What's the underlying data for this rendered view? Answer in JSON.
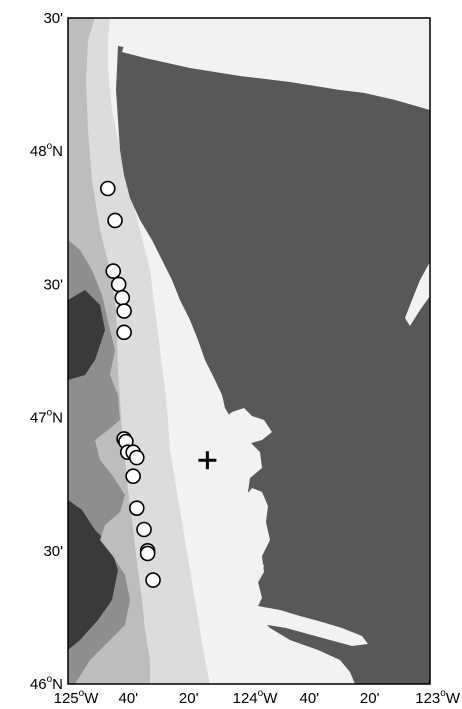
{
  "map": {
    "colors": {
      "land": "#585858",
      "water_shallow": "#f2f2f2",
      "water_shelf": "#dcdcdc",
      "water_slope": "#bdbdbd",
      "water_deep": "#8e8e8e",
      "water_deepest": "#3a3a3a",
      "frame": "#000000",
      "station_marker_fill": "#ffffff",
      "station_marker_stroke": "#000000"
    },
    "extent": {
      "lon": [
        -125.0,
        -123.0
      ],
      "lat": [
        46.0,
        48.5
      ]
    },
    "lat_ticks": [
      {
        "lat": 48.5,
        "label": "30'",
        "deg": ""
      },
      {
        "lat": 48.0,
        "label": "48",
        "deg": "o",
        "hemi": "N"
      },
      {
        "lat": 47.5,
        "label": "30'",
        "deg": ""
      },
      {
        "lat": 47.0,
        "label": "47",
        "deg": "o",
        "hemi": "N"
      },
      {
        "lat": 46.5,
        "label": "30'",
        "deg": ""
      },
      {
        "lat": 46.0,
        "label": "46",
        "deg": "o",
        "hemi": "N"
      }
    ],
    "lon_ticks": [
      {
        "lon": -125.0,
        "label": "125",
        "deg": "o",
        "hemi": "W"
      },
      {
        "lon": -124.6667,
        "label": "40'",
        "deg": ""
      },
      {
        "lon": -124.3333,
        "label": "20'",
        "deg": ""
      },
      {
        "lon": -124.0,
        "label": "124",
        "deg": "o",
        "hemi": "W"
      },
      {
        "lon": -123.6667,
        "label": "40'",
        "deg": ""
      },
      {
        "lon": -123.3333,
        "label": "20'",
        "deg": ""
      },
      {
        "lon": -123.0,
        "label": "123",
        "deg": "o",
        "hemi": "W"
      }
    ],
    "stations": [
      {
        "lon": -124.78,
        "lat": 47.86
      },
      {
        "lon": -124.74,
        "lat": 47.74
      },
      {
        "lon": -124.75,
        "lat": 47.55
      },
      {
        "lon": -124.72,
        "lat": 47.5
      },
      {
        "lon": -124.7,
        "lat": 47.45
      },
      {
        "lon": -124.69,
        "lat": 47.4
      },
      {
        "lon": -124.69,
        "lat": 47.32
      },
      {
        "lon": -124.69,
        "lat": 46.92
      },
      {
        "lon": -124.68,
        "lat": 46.91
      },
      {
        "lon": -124.67,
        "lat": 46.87
      },
      {
        "lon": -124.64,
        "lat": 46.87
      },
      {
        "lon": -124.62,
        "lat": 46.85
      },
      {
        "lon": -124.64,
        "lat": 46.78
      },
      {
        "lon": -124.62,
        "lat": 46.66
      },
      {
        "lon": -124.58,
        "lat": 46.58
      },
      {
        "lon": -124.56,
        "lat": 46.5
      },
      {
        "lon": -124.56,
        "lat": 46.49
      },
      {
        "lon": -124.53,
        "lat": 46.39
      }
    ],
    "reference_mark": {
      "lon": -124.23,
      "lat": 46.84,
      "symbol": "cross"
    }
  }
}
